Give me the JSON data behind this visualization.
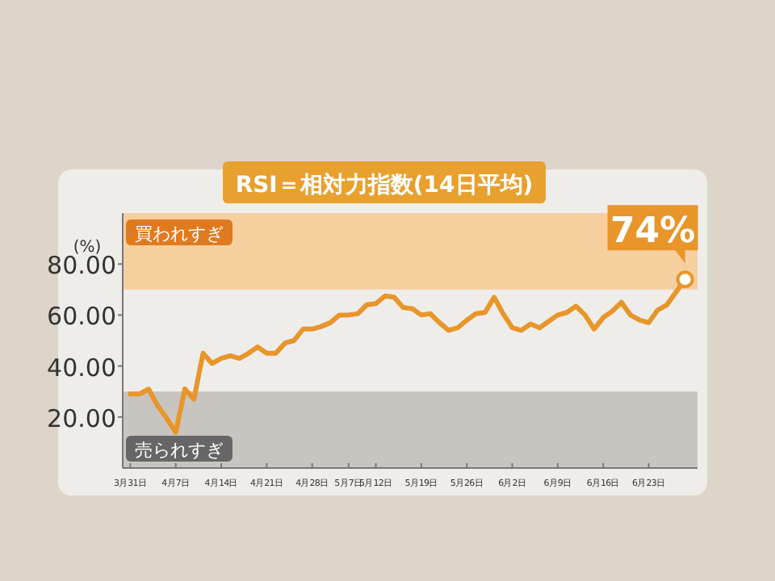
{
  "chart_data": {
    "type": "line",
    "title": "RSI＝相対力指数(14日平均)",
    "ylabel": "(%)",
    "categories": [
      "3月31日",
      null,
      null,
      null,
      null,
      "4月7日",
      null,
      null,
      null,
      null,
      "4月14日",
      null,
      null,
      null,
      null,
      "4月21日",
      null,
      null,
      null,
      null,
      "4月28日",
      null,
      null,
      null,
      "5月7日",
      null,
      null,
      "5月12日",
      null,
      null,
      null,
      null,
      "5月19日",
      null,
      null,
      null,
      null,
      "5月26日",
      null,
      null,
      null,
      null,
      "6月2日",
      null,
      null,
      null,
      null,
      "6月9日",
      null,
      null,
      null,
      null,
      "6月16日",
      null,
      null,
      null,
      null,
      "6月23日",
      null,
      null,
      null,
      null
    ],
    "series": [
      {
        "color": "#e8952a",
        "values": [
          29,
          29,
          31,
          24.5,
          19.5,
          14,
          31,
          27,
          45,
          41,
          43,
          44,
          43,
          45,
          47.5,
          45,
          45,
          49,
          50,
          54.5,
          54.5,
          55.5,
          57,
          60,
          60,
          60.5,
          64,
          64.5,
          67.5,
          67,
          63,
          62.5,
          60,
          60.5,
          57,
          54,
          55,
          58,
          60.5,
          61,
          67,
          60.5,
          55,
          54,
          56.5,
          55,
          57.5,
          60,
          61,
          63.5,
          60,
          54.5,
          59,
          61.5,
          65,
          60,
          58,
          57,
          62,
          64,
          69,
          74
        ]
      }
    ],
    "ylim": [
      0,
      100
    ],
    "yticks": [
      {
        "value": 20,
        "label": "20.00"
      },
      {
        "value": 40,
        "label": "40.00"
      },
      {
        "value": 60,
        "label": "60.00"
      },
      {
        "value": 80,
        "label": "80.00"
      }
    ],
    "bands": [
      {
        "axis": "y",
        "from": 70,
        "to": 100,
        "label": "買われすぎ",
        "color": "#f6cf9f"
      },
      {
        "axis": "y",
        "from": 0,
        "to": 30,
        "label": "売られすぎ",
        "color": "#c8c5c0"
      }
    ],
    "annotations": [
      "74%"
    ],
    "line_style": "solid"
  }
}
